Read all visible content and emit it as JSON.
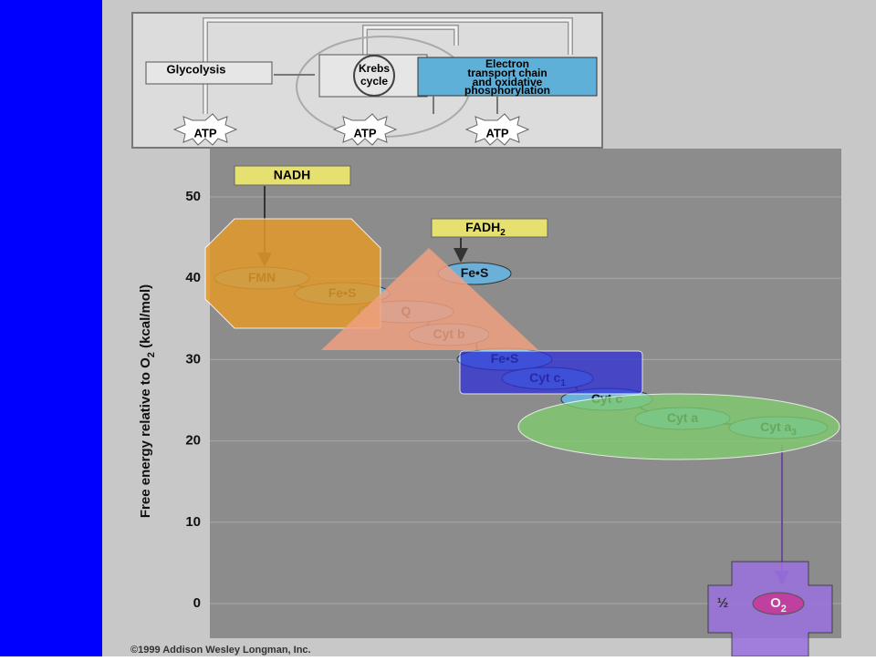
{
  "inset": {
    "glycolysis": "Glycolysis",
    "krebs": [
      "Krebs",
      "cycle"
    ],
    "etc": [
      "Electron",
      "transport chain",
      "and oxidative",
      "phosphorylation"
    ],
    "atp": [
      "ATP",
      "ATP",
      "ATP"
    ]
  },
  "axis": {
    "label": [
      "Free energy relative to O",
      "2",
      " (kcal/mol)"
    ],
    "ticks": [
      50,
      40,
      30,
      20,
      10,
      0
    ]
  },
  "donors": [
    {
      "label": "NADH"
    },
    {
      "label": "FADH",
      "sub": "2"
    }
  ],
  "carriers": [
    {
      "label": "FMN"
    },
    {
      "label": "Fe•S"
    },
    {
      "label": "Fe•S"
    },
    {
      "label": "Q"
    },
    {
      "label": "Cyt b"
    },
    {
      "label": "Fe•S"
    },
    {
      "label": "Cyt c",
      "sub": "1"
    },
    {
      "label": "Cyt c"
    },
    {
      "label": "Cyt a"
    },
    {
      "label": "Cyt a",
      "sub": "3"
    }
  ],
  "acceptor": {
    "prefix": "½",
    "label": "O",
    "sub": "2"
  },
  "copyright": "©1999 Addison Wesley Longman, Inc."
}
